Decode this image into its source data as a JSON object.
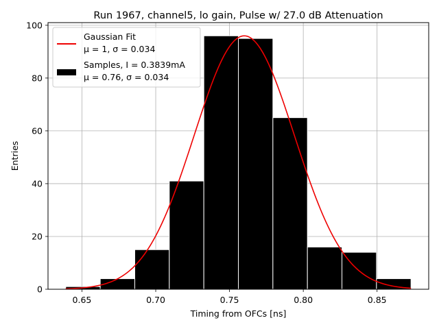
{
  "chart_data": {
    "type": "bar",
    "title": "Run 1967, channel5, lo gain, Pulse w/ 27.0 dB Attenuation",
    "xlabel": "Timing from OFCs [ns]",
    "ylabel": "Entries",
    "xlim": [
      0.627,
      0.885
    ],
    "ylim": [
      0,
      101
    ],
    "grid": true,
    "legend_position": "upper left",
    "x_ticks": [
      0.65,
      0.7,
      0.75,
      0.8,
      0.85
    ],
    "x_tick_labels": [
      "0.65",
      "0.70",
      "0.75",
      "0.80",
      "0.85"
    ],
    "y_ticks": [
      0,
      20,
      40,
      60,
      80,
      100
    ],
    "y_tick_labels": [
      "0",
      "20",
      "40",
      "60",
      "80",
      "100"
    ],
    "bin_edges": [
      0.639,
      0.6624,
      0.6858,
      0.7092,
      0.7326,
      0.756,
      0.7794,
      0.8028,
      0.8262,
      0.8496,
      0.873
    ],
    "series": [
      {
        "kind": "histogram",
        "color": "#000000",
        "edgecolor": "#ffffff",
        "values": [
          1,
          4,
          15,
          41,
          96,
          95,
          65,
          16,
          14,
          4
        ]
      },
      {
        "kind": "line",
        "color": "#ee0000",
        "mu": 0.76,
        "sigma": 0.034,
        "peak": 96,
        "x_range": [
          0.639,
          0.873
        ]
      }
    ],
    "legend": [
      {
        "line1": "Gaussian Fit",
        "line2": "μ = 1, σ = 0.034",
        "swatch": "line",
        "color": "#ee0000"
      },
      {
        "line1": "Samples, I = 0.3839mA",
        "line2": "μ = 0.76, σ = 0.034",
        "swatch": "patch",
        "color": "#000000"
      }
    ]
  }
}
